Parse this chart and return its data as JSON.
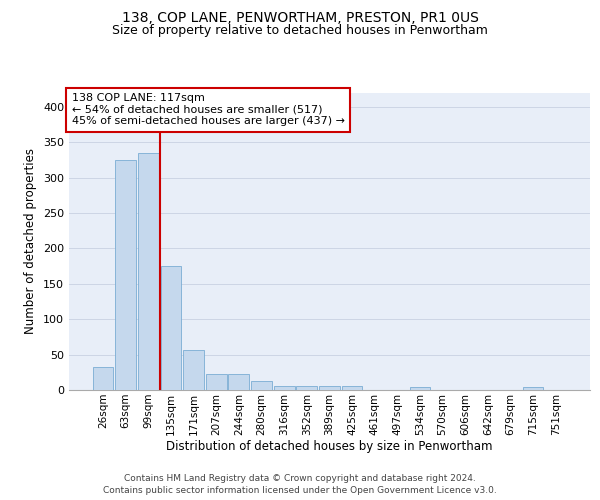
{
  "title1": "138, COP LANE, PENWORTHAM, PRESTON, PR1 0US",
  "title2": "Size of property relative to detached houses in Penwortham",
  "xlabel": "Distribution of detached houses by size in Penwortham",
  "ylabel": "Number of detached properties",
  "categories": [
    "26sqm",
    "63sqm",
    "99sqm",
    "135sqm",
    "171sqm",
    "207sqm",
    "244sqm",
    "280sqm",
    "316sqm",
    "352sqm",
    "389sqm",
    "425sqm",
    "461sqm",
    "497sqm",
    "534sqm",
    "570sqm",
    "606sqm",
    "642sqm",
    "679sqm",
    "715sqm",
    "751sqm"
  ],
  "values": [
    33,
    325,
    335,
    175,
    57,
    23,
    22,
    13,
    5,
    5,
    5,
    5,
    0,
    0,
    4,
    0,
    0,
    0,
    0,
    4,
    0
  ],
  "bar_color": "#c5d8ed",
  "bar_edge_color": "#7aadd4",
  "vline_color": "#cc0000",
  "vline_x": 2.5,
  "ann_line1": "138 COP LANE: 117sqm",
  "ann_line2": "← 54% of detached houses are smaller (517)",
  "ann_line3": "45% of semi-detached houses are larger (437) →",
  "box_facecolor": "white",
  "box_edgecolor": "#cc0000",
  "footer": "Contains HM Land Registry data © Crown copyright and database right 2024.\nContains public sector information licensed under the Open Government Licence v3.0.",
  "ylim": [
    0,
    420
  ],
  "yticks": [
    0,
    50,
    100,
    150,
    200,
    250,
    300,
    350,
    400
  ],
  "grid_color": "#cdd5e5",
  "plot_bg": "#e8eef8",
  "fig_bg": "white",
  "title1_fontsize": 10,
  "title2_fontsize": 9,
  "ylabel_fontsize": 8.5,
  "xlabel_fontsize": 8.5,
  "ytick_fontsize": 8,
  "xtick_fontsize": 7.5,
  "ann_fontsize": 8,
  "footer_fontsize": 6.5
}
